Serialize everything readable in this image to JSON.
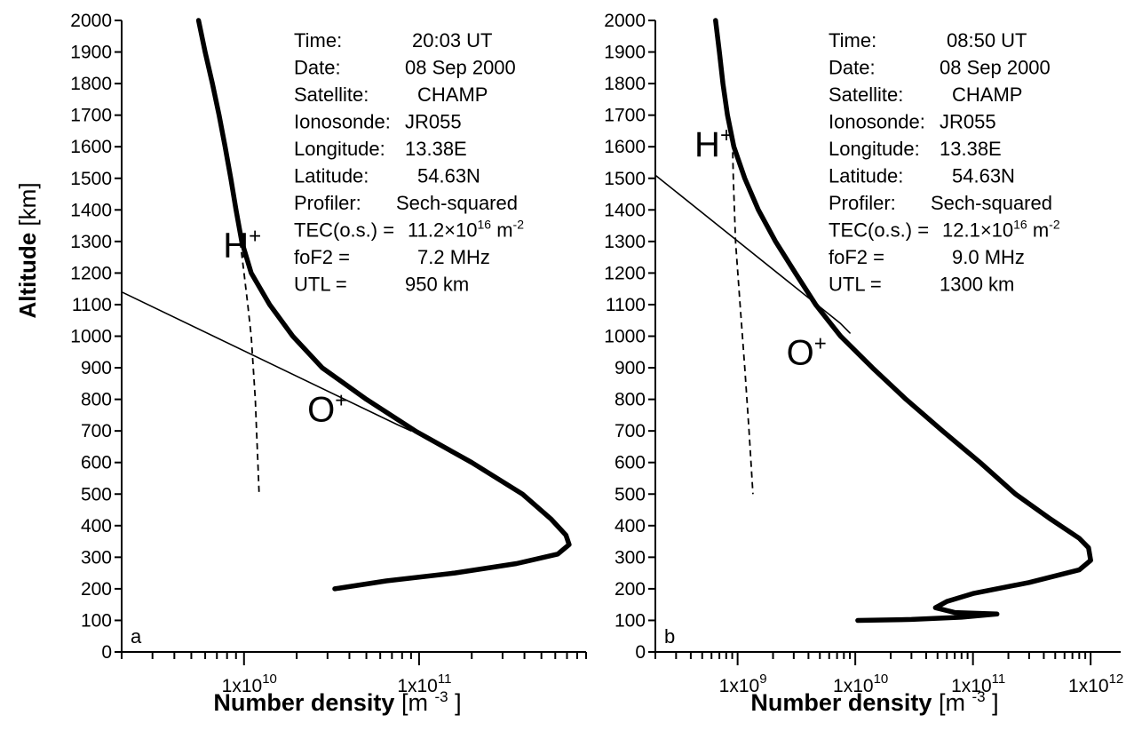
{
  "y_axis_label": {
    "main": "Altitude",
    "unit": "[km]"
  },
  "x_axis_label": {
    "main": "Number density",
    "unit_pre": "[m",
    "unit_exp": "-3",
    "unit_post": "]"
  },
  "chart_data": [
    {
      "type": "line",
      "panel_letter": "a",
      "xscale": "log",
      "xlim": [
        2000000000.0,
        900000000000.0
      ],
      "ylim": [
        0,
        2000
      ],
      "y_ticks": [
        0,
        100,
        200,
        300,
        400,
        500,
        600,
        700,
        800,
        900,
        1000,
        1100,
        1200,
        1300,
        1400,
        1500,
        1600,
        1700,
        1800,
        1900,
        2000
      ],
      "x_tick_labels": [
        {
          "value": 10000000000.0,
          "label": "1x10",
          "exp": "10"
        },
        {
          "value": 100000000000.0,
          "label": "1x10",
          "exp": "11"
        }
      ],
      "info": [
        {
          "key": "Time:",
          "value": "20:03 UT"
        },
        {
          "key": "Date:",
          "value": "08 Sep 2000"
        },
        {
          "key": "Satellite:",
          "value": "CHAMP"
        },
        {
          "key": "Ionosonde:",
          "value": "JR055"
        },
        {
          "key": "Longitude:",
          "value": "13.38E"
        },
        {
          "key": "Latitude:",
          "value": "54.63N"
        },
        {
          "key": "Profiler:",
          "value": "Sech-squared"
        },
        {
          "key": "TEC(o.s.) =",
          "value": "11.2×10",
          "sup": "16",
          "unit": " m",
          "unit_sup": "-2"
        },
        {
          "key": "foF2 =",
          "value": "7.2 MHz"
        },
        {
          "key": "UTL =",
          "value": "950 km"
        }
      ],
      "labels": [
        {
          "text": "H",
          "sup": "+",
          "x": 7600000000.0,
          "y": 1250
        },
        {
          "text": "O",
          "sup": "+",
          "x": 23000000000.0,
          "y": 730
        }
      ],
      "series": [
        {
          "style": "thick",
          "points": [
            [
              5500000000.0,
              2000
            ],
            [
              6000000000.0,
              1900
            ],
            [
              6600000000.0,
              1800
            ],
            [
              7200000000.0,
              1700
            ],
            [
              7800000000.0,
              1600
            ],
            [
              8400000000.0,
              1500
            ],
            [
              9000000000.0,
              1400
            ],
            [
              9700000000.0,
              1300
            ],
            [
              11000000000.0,
              1200
            ],
            [
              14000000000.0,
              1100
            ],
            [
              19000000000.0,
              1000
            ],
            [
              28000000000.0,
              900
            ],
            [
              50000000000.0,
              800
            ],
            [
              95000000000.0,
              700
            ],
            [
              200000000000.0,
              600
            ],
            [
              390000000000.0,
              500
            ],
            [
              570000000000.0,
              420
            ],
            [
              690000000000.0,
              370
            ],
            [
              720000000000.0,
              340
            ],
            [
              620000000000.0,
              310
            ],
            [
              360000000000.0,
              280
            ],
            [
              160000000000.0,
              250
            ],
            [
              65000000000.0,
              225
            ],
            [
              33000000000.0,
              200
            ]
          ]
        },
        {
          "style": "dashed",
          "points": [
            [
              9500000000.0,
              1300
            ],
            [
              10000000000.0,
              1200
            ],
            [
              10500000000.0,
              1100
            ],
            [
              11000000000.0,
              1000
            ],
            [
              11300000000.0,
              900
            ],
            [
              11600000000.0,
              800
            ],
            [
              11800000000.0,
              700
            ],
            [
              12000000000.0,
              600
            ],
            [
              12200000000.0,
              500
            ]
          ]
        },
        {
          "style": "thin",
          "points": [
            [
              2000000000.0,
              1140
            ],
            [
              75000000000.0,
              720
            ],
            [
              90000000000.0,
              700
            ]
          ]
        }
      ]
    },
    {
      "type": "line",
      "panel_letter": "b",
      "xscale": "log",
      "xlim": [
        200000000.0,
        1800000000000.0
      ],
      "ylim": [
        0,
        2000
      ],
      "y_ticks": [
        0,
        100,
        200,
        300,
        400,
        500,
        600,
        700,
        800,
        900,
        1000,
        1100,
        1200,
        1300,
        1400,
        1500,
        1600,
        1700,
        1800,
        1900,
        2000
      ],
      "x_tick_labels": [
        {
          "value": 1000000000.0,
          "label": "1x10",
          "exp": "9"
        },
        {
          "value": 10000000000.0,
          "label": "1x10",
          "exp": "10"
        },
        {
          "value": 100000000000.0,
          "label": "1x10",
          "exp": "11"
        },
        {
          "value": 1000000000000.0,
          "label": "1x10",
          "exp": "12"
        }
      ],
      "info": [
        {
          "key": "Time:",
          "value": "08:50 UT"
        },
        {
          "key": "Date:",
          "value": "08 Sep 2000"
        },
        {
          "key": "Satellite:",
          "value": "CHAMP"
        },
        {
          "key": "Ionosonde:",
          "value": "JR055"
        },
        {
          "key": "Longitude:",
          "value": "13.38E"
        },
        {
          "key": "Latitude:",
          "value": "54.63N"
        },
        {
          "key": "Profiler:",
          "value": "Sech-squared"
        },
        {
          "key": "TEC(o.s.) =",
          "value": "12.1×10",
          "sup": "16",
          "unit": " m",
          "unit_sup": "-2"
        },
        {
          "key": "foF2 =",
          "value": "9.0 MHz"
        },
        {
          "key": "UTL =",
          "value": "1300 km"
        }
      ],
      "labels": [
        {
          "text": "H",
          "sup": "+",
          "x": 430000000.0,
          "y": 1570
        },
        {
          "text": "O",
          "sup": "+",
          "x": 2600000000.0,
          "y": 910
        }
      ],
      "series": [
        {
          "style": "thick",
          "points": [
            [
              650000000.0,
              2000
            ],
            [
              700000000.0,
              1900
            ],
            [
              750000000.0,
              1800
            ],
            [
              820000000.0,
              1700
            ],
            [
              930000000.0,
              1600
            ],
            [
              1150000000.0,
              1500
            ],
            [
              1500000000.0,
              1400
            ],
            [
              2100000000.0,
              1300
            ],
            [
              3100000000.0,
              1200
            ],
            [
              4600000000.0,
              1100
            ],
            [
              7500000000.0,
              1000
            ],
            [
              14000000000.0,
              900
            ],
            [
              27000000000.0,
              800
            ],
            [
              55000000000.0,
              700
            ],
            [
              115000000000.0,
              600
            ],
            [
              230000000000.0,
              500
            ],
            [
              460000000000.0,
              420
            ],
            [
              800000000000.0,
              360
            ],
            [
              960000000000.0,
              330
            ],
            [
              1000000000000.0,
              290
            ],
            [
              800000000000.0,
              260
            ],
            [
              300000000000.0,
              220
            ],
            [
              100000000000.0,
              185
            ],
            [
              60000000000.0,
              160
            ],
            [
              48000000000.0,
              140
            ],
            [
              70000000000.0,
              125
            ],
            [
              160000000000.0,
              120
            ],
            [
              80000000000.0,
              110
            ],
            [
              30000000000.0,
              103
            ],
            [
              10500000000.0,
              100
            ]
          ]
        },
        {
          "style": "dashed",
          "points": [
            [
              900000000.0,
              1650
            ],
            [
              920000000.0,
              1500
            ],
            [
              960000000.0,
              1300
            ],
            [
              1050000000.0,
              1100
            ],
            [
              1150000000.0,
              900
            ],
            [
              1250000000.0,
              700
            ],
            [
              1350000000.0,
              500
            ]
          ]
        },
        {
          "style": "thin",
          "points": [
            [
              200000000.0,
              1510
            ],
            [
              7500000000.0,
              1040
            ],
            [
              9000000000.0,
              1010
            ]
          ]
        }
      ]
    }
  ]
}
